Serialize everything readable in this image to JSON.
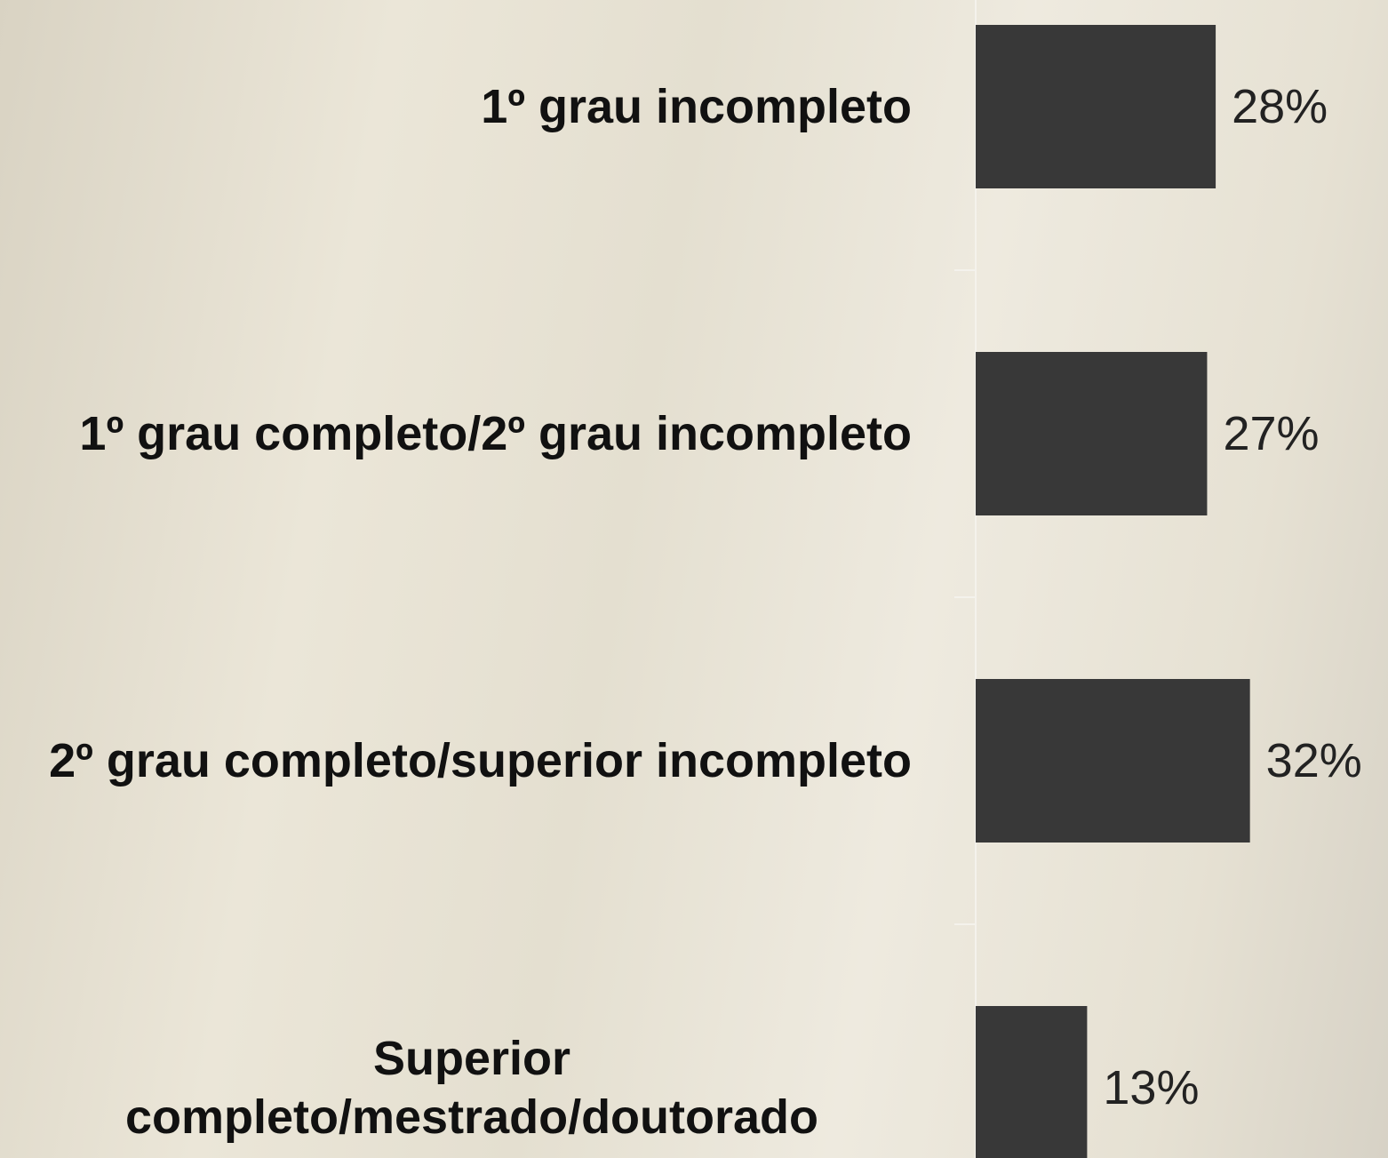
{
  "chart_data": {
    "type": "barh",
    "categories": [
      "1º grau incompleto",
      "1º grau completo/2º grau incompleto",
      "2º grau completo/superior incompleto",
      "Superior completo/mestrado/doutorado"
    ],
    "values": [
      28,
      27,
      32,
      13
    ],
    "value_labels": [
      "28%",
      "27%",
      "32%",
      "13%"
    ],
    "color": "#383838",
    "xlim": [
      0,
      48
    ]
  }
}
